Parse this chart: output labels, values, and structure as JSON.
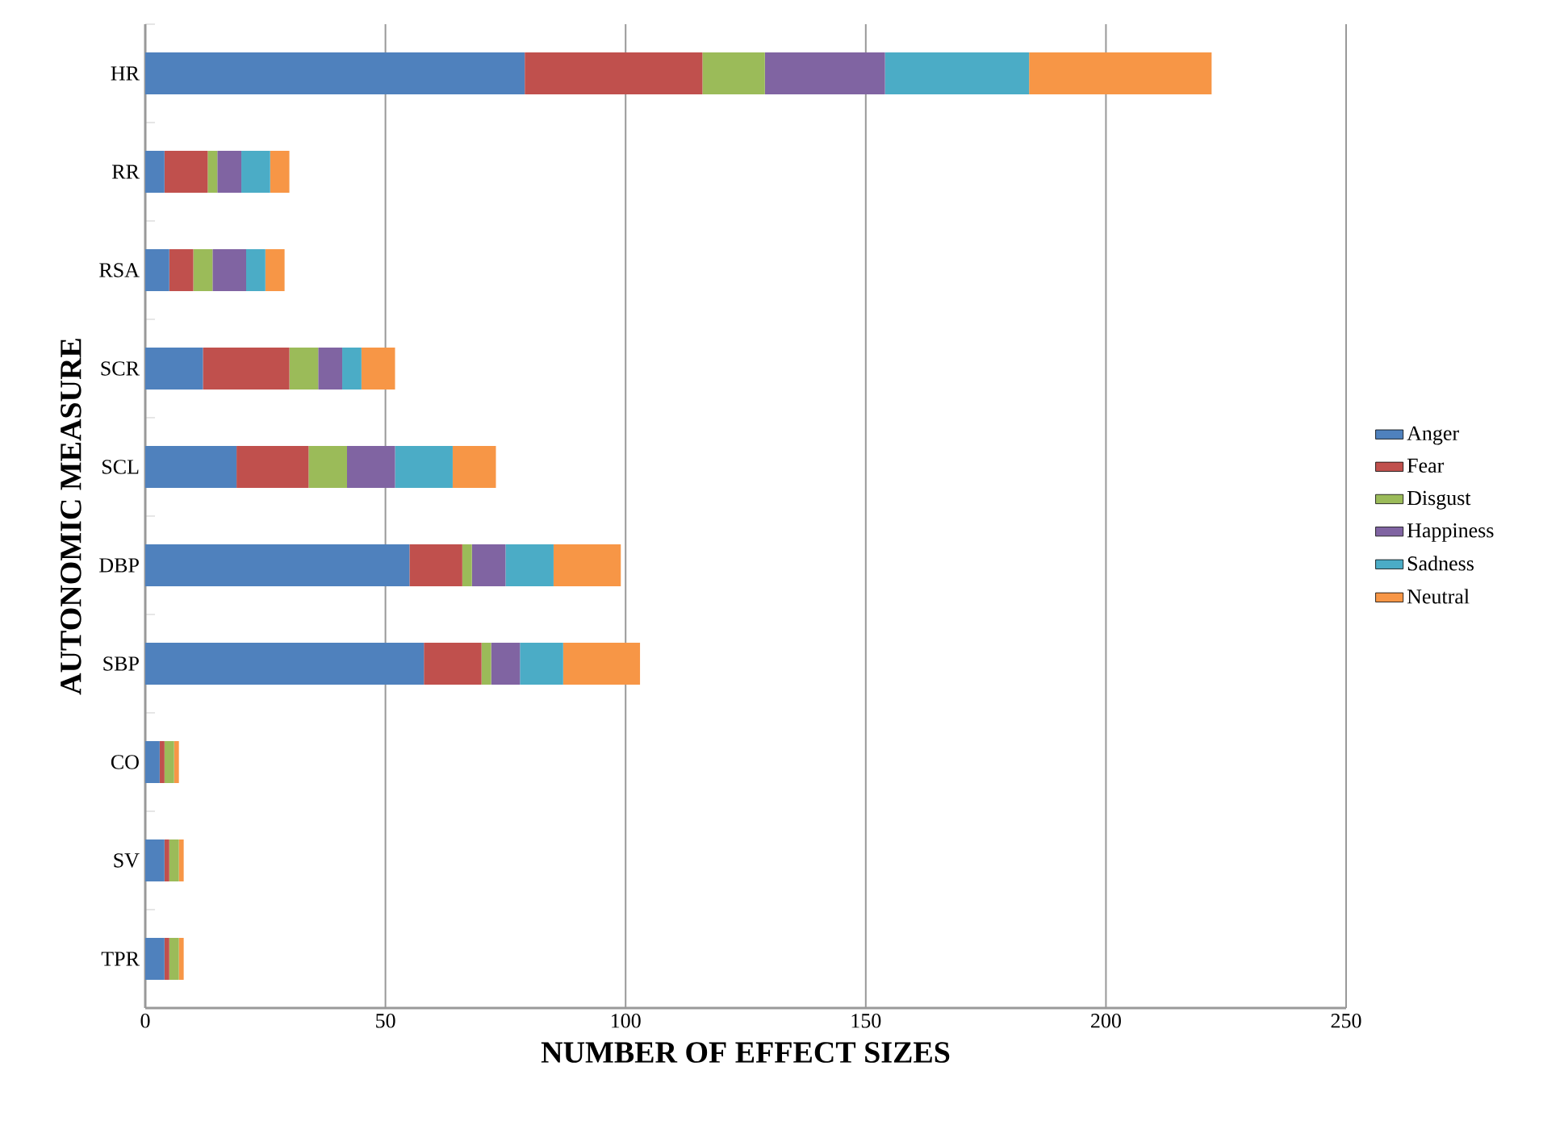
{
  "chart_data": {
    "type": "bar",
    "orientation": "horizontal",
    "stacked": true,
    "xlabel": "NUMBER OF EFFECT SIZES",
    "ylabel": "AUTONOMIC MEASURE",
    "categories": [
      "HR",
      "RR",
      "RSA",
      "SCR",
      "SCL",
      "DBP",
      "SBP",
      "CO",
      "SV",
      "TPR"
    ],
    "series": [
      {
        "name": "Anger",
        "color": "#4f81bd",
        "values": [
          79,
          4,
          5,
          12,
          19,
          55,
          58,
          3,
          4,
          4
        ]
      },
      {
        "name": "Fear",
        "color": "#c0504d",
        "values": [
          37,
          9,
          5,
          18,
          15,
          11,
          12,
          1,
          1,
          1
        ]
      },
      {
        "name": "Disgust",
        "color": "#9bbb59",
        "values": [
          13,
          2,
          4,
          6,
          8,
          2,
          2,
          2,
          2,
          2
        ]
      },
      {
        "name": "Happiness",
        "color": "#8064a2",
        "values": [
          25,
          5,
          7,
          5,
          10,
          7,
          6,
          0,
          0,
          0
        ]
      },
      {
        "name": "Sadness",
        "color": "#4bacc6",
        "values": [
          30,
          6,
          4,
          4,
          12,
          10,
          9,
          0,
          0,
          0
        ]
      },
      {
        "name": "Neutral",
        "color": "#f79646",
        "values": [
          38,
          4,
          4,
          7,
          9,
          14,
          16,
          1,
          1,
          1
        ]
      }
    ],
    "xlim": [
      0,
      250
    ],
    "xticks": [
      0,
      50,
      100,
      150,
      200,
      250
    ],
    "grid": "x",
    "legend": "right"
  }
}
